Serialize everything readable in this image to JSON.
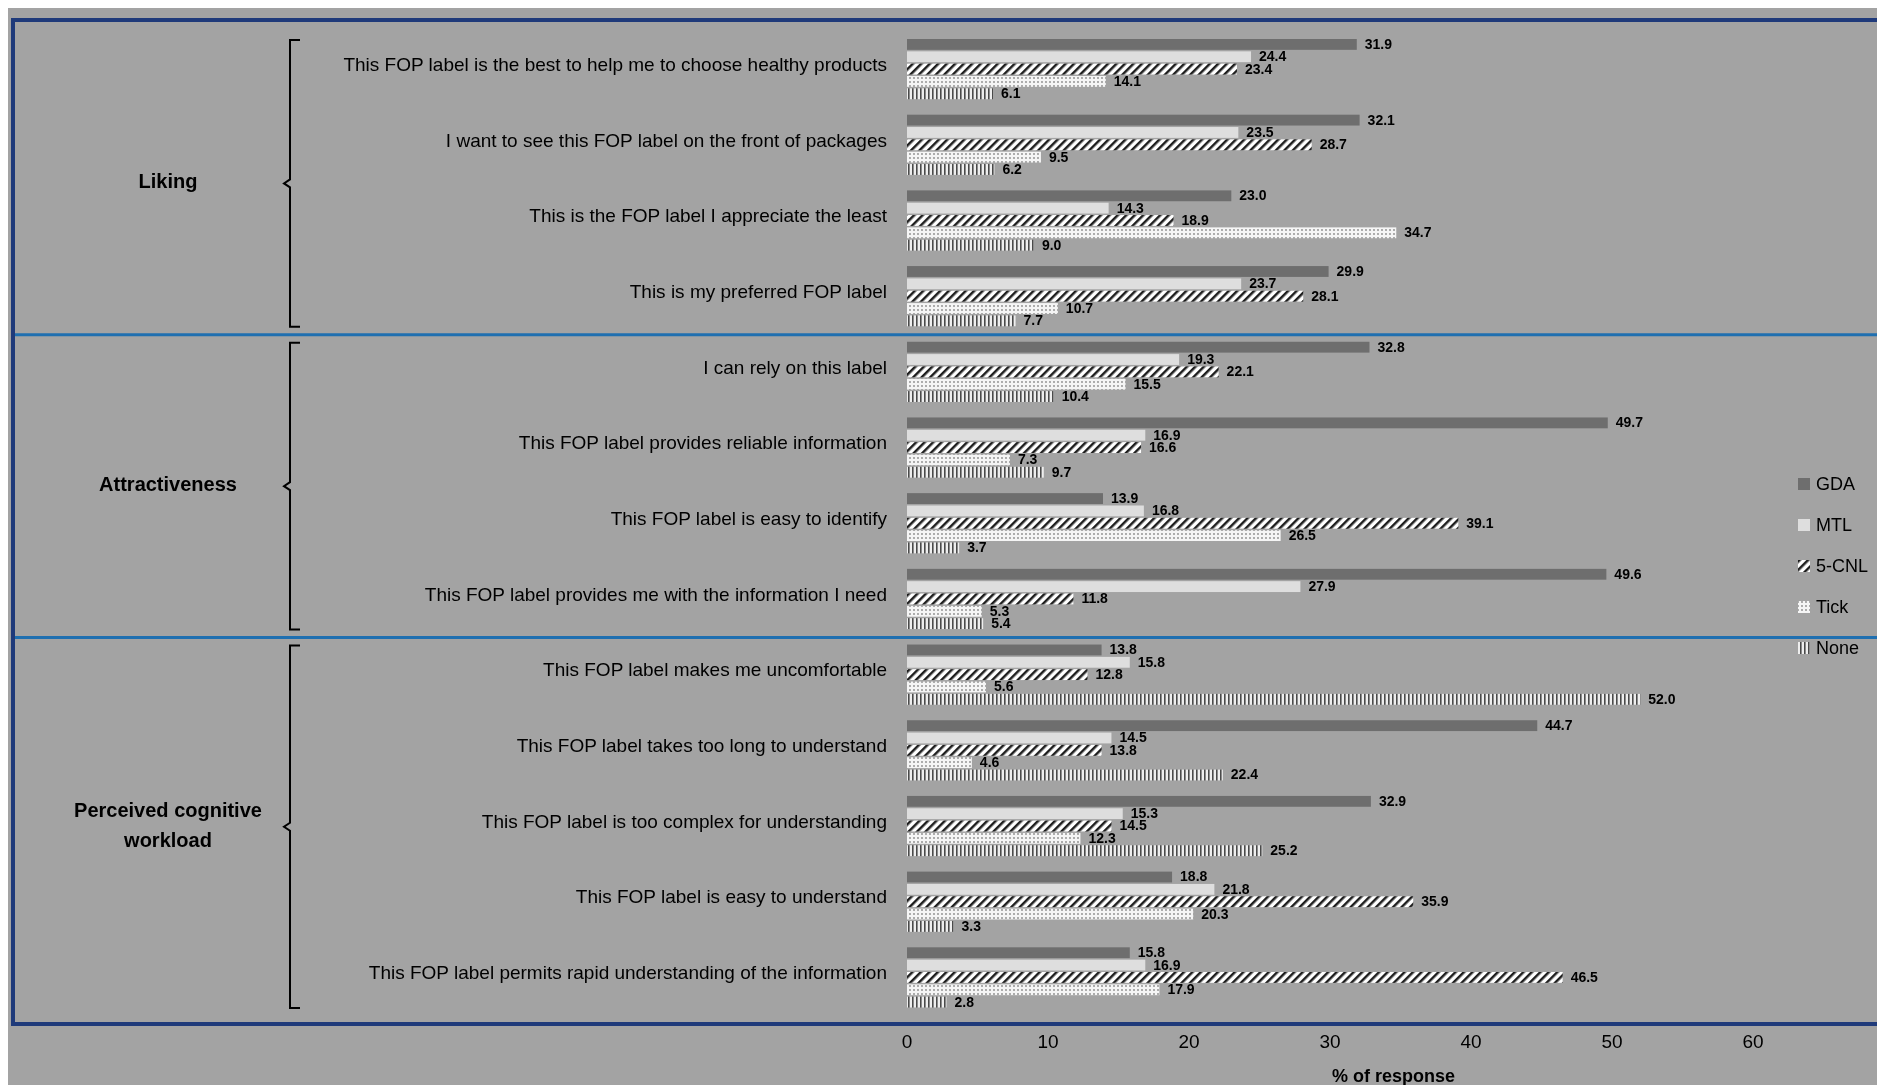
{
  "chart_data": {
    "type": "bar",
    "orientation": "horizontal",
    "xlabel": "% of response",
    "categories": [
      "This FOP label is the best to help me to choose healthy products",
      "I want to see this FOP label on the front of packages",
      "This is the FOP label I appreciate the least",
      "This is my preferred FOP label",
      "I can rely on this label",
      "This FOP label provides reliable information",
      "This FOP label is easy to identify",
      "This FOP label provides me with the information I need",
      "This FOP label makes me uncomfortable",
      "This FOP label takes too long to understand",
      "This FOP label is too complex for understanding",
      "This FOP label is easy to understand",
      "This FOP label permits rapid understanding of the information"
    ],
    "series": [
      {
        "name": "GDA",
        "color": "#6e6e6e",
        "values": [
          31.9,
          32.1,
          23.0,
          29.9,
          32.8,
          49.7,
          13.9,
          49.6,
          13.8,
          44.7,
          32.9,
          18.8,
          15.8
        ],
        "value_labels": [
          "31.9",
          "32.1",
          "23.0",
          "29.9",
          "32.8",
          "49.7",
          "13.9",
          "49.6",
          "13.8",
          "44.7",
          "32.9",
          "18.8",
          "15.8"
        ]
      },
      {
        "name": "MTL",
        "color": "#dedede",
        "values": [
          24.4,
          23.5,
          14.3,
          23.7,
          19.3,
          16.9,
          16.8,
          27.9,
          15.8,
          14.5,
          15.3,
          21.8,
          16.9
        ],
        "value_labels": [
          "24.4",
          "23.5",
          "14.3",
          "23.7",
          "19.3",
          "16.9",
          "16.8",
          "27.9",
          "15.8",
          "14.5",
          "15.3",
          "21.8",
          "16.9"
        ]
      },
      {
        "name": "5-CNL",
        "color": "#1e1e1e",
        "values": [
          23.4,
          28.7,
          18.9,
          28.1,
          22.1,
          16.6,
          39.1,
          11.8,
          12.8,
          13.8,
          14.5,
          35.9,
          46.5
        ],
        "value_labels": [
          "23.4",
          "28.7",
          "18.9",
          "28.1",
          "22.1",
          "16.6",
          "39.1",
          "11.8",
          "12.8",
          "13.8",
          "14.5",
          "35.9",
          "46.5"
        ]
      },
      {
        "name": "Tick",
        "color": "#f5f5f5",
        "values": [
          14.1,
          9.5,
          34.7,
          10.7,
          15.5,
          7.3,
          26.5,
          5.3,
          5.6,
          4.6,
          12.3,
          20.3,
          17.9
        ],
        "value_labels": [
          "14.1",
          "9.5",
          "34.7",
          "10.7",
          "15.5",
          "7.3",
          "26.5",
          "5.3",
          "5.6",
          "4.6",
          "12.3",
          "20.3",
          "17.9"
        ]
      },
      {
        "name": "None",
        "color": "#4a4a4a",
        "values": [
          6.1,
          6.2,
          9.0,
          7.7,
          10.4,
          9.7,
          3.7,
          5.4,
          52.0,
          22.4,
          25.2,
          3.3,
          2.8
        ],
        "value_labels": [
          "6.1",
          "6.2",
          "9.0",
          "7.7",
          "10.4",
          "9.7",
          "3.7",
          "5.4",
          "52.0",
          "22.4",
          "25.2",
          "3.3",
          "2.8"
        ]
      }
    ],
    "xlim": [
      0,
      69
    ],
    "xticks": [
      0,
      10,
      20,
      30,
      40,
      50,
      60
    ],
    "legend": "right",
    "grid": false,
    "annotations": [
      "Liking",
      "Attractiveness",
      "Perceived cognitive workload"
    ]
  }
}
